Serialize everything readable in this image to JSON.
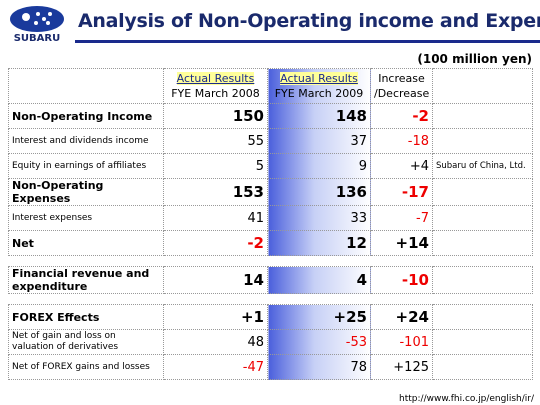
{
  "header": {
    "brand": "SUBARU",
    "title": "Analysis of Non-Operating income and Expenses"
  },
  "unit": "(100 million yen)",
  "table": {
    "columns": [
      {
        "line1": "Actual Results",
        "line2": "FYE March 2008"
      },
      {
        "line1": "Actual Results",
        "line2": "FYE March 2009"
      },
      {
        "line1": "Increase",
        "line2": "/Decrease"
      }
    ],
    "rows": [
      [
        "Non-Operating Income",
        "150",
        "148",
        "-2"
      ],
      [
        "Interest and dividends income",
        "55",
        "37",
        "-18"
      ],
      [
        "Equity in earnings of affiliates",
        "5",
        "9",
        "+4",
        "Subaru of China, Ltd."
      ],
      [
        "Non-Operating Expenses",
        "153",
        "136",
        "-17"
      ],
      [
        "Interest expenses",
        "41",
        "33",
        "-7"
      ],
      [
        "Net",
        "-2",
        "12",
        "+14"
      ],
      [
        "Financial revenue and expenditure",
        "14",
        "4",
        "-10"
      ],
      [
        "FOREX Effects",
        "+1",
        "+25",
        "+24"
      ],
      [
        "Net of gain and loss on valuation of derivatives",
        "48",
        "-53",
        "-101"
      ],
      [
        "Net of FOREX gains and losses",
        "-47",
        "78",
        "+125"
      ]
    ]
  },
  "footer": {
    "url": "http://www.fhi.co.jp/english/ir/"
  }
}
